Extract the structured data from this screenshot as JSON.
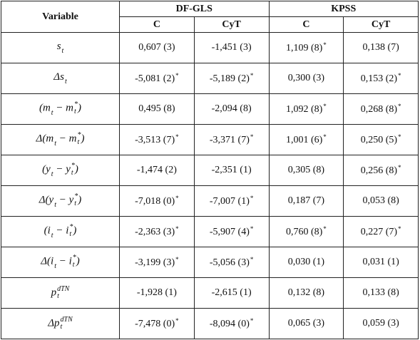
{
  "table": {
    "header": {
      "variable": "Variable",
      "groups": [
        "DF-GLS",
        "KPSS"
      ],
      "columns": [
        "C",
        "CyT",
        "C",
        "CyT"
      ]
    },
    "rows": [
      {
        "variable": [
          {
            "text": "s"
          },
          {
            "sub": "t"
          }
        ],
        "cells": [
          {
            "text": "0,607 (3)"
          },
          {
            "text": "-1,451 (3)"
          },
          {
            "text": "1,109 (8)",
            "sup": "*"
          },
          {
            "text": "0,138 (7)"
          }
        ]
      },
      {
        "variable": [
          {
            "text": "Δs"
          },
          {
            "sub": "t"
          }
        ],
        "cells": [
          {
            "text": "-5,081 (2)",
            "sup": "*"
          },
          {
            "text": "-5,189 (2)",
            "sup": "*"
          },
          {
            "text": "0,300 (3)"
          },
          {
            "text": "0,153 (2)",
            "sup": "*"
          }
        ]
      },
      {
        "variable": [
          {
            "text": "(m"
          },
          {
            "sub": "t"
          },
          {
            "text": " − m"
          },
          {
            "sub": "t",
            "sup": "*"
          },
          {
            "text": ")"
          }
        ],
        "cells": [
          {
            "text": "0,495 (8)"
          },
          {
            "text": "-2,094 (8)"
          },
          {
            "text": "1,092 (8)",
            "sup": "*"
          },
          {
            "text": "0,268 (8)",
            "sup": "*"
          }
        ]
      },
      {
        "variable": [
          {
            "text": "Δ(m"
          },
          {
            "sub": "t"
          },
          {
            "text": " − m"
          },
          {
            "sub": "t",
            "sup": "*"
          },
          {
            "text": ")"
          }
        ],
        "cells": [
          {
            "text": "-3,513 (7)",
            "sup": "*"
          },
          {
            "text": "-3,371 (7)",
            "sup": "*"
          },
          {
            "text": "1,001 (6)",
            "sup": "*"
          },
          {
            "text": "0,250 (5)",
            "sup": "*"
          }
        ]
      },
      {
        "variable": [
          {
            "text": "(y"
          },
          {
            "sub": "t"
          },
          {
            "text": " − y"
          },
          {
            "sub": "t",
            "sup": "*"
          },
          {
            "text": ")"
          }
        ],
        "cells": [
          {
            "text": "-1,474 (2)"
          },
          {
            "text": "-2,351 (1)"
          },
          {
            "text": "0,305 (8)"
          },
          {
            "text": "0,256 (8)",
            "sup": "*"
          }
        ]
      },
      {
        "variable": [
          {
            "text": "Δ(y"
          },
          {
            "sub": "t"
          },
          {
            "text": " − y"
          },
          {
            "sub": "t",
            "sup": "*"
          },
          {
            "text": ")"
          }
        ],
        "cells": [
          {
            "text": "-7,018 (0)",
            "sup": "*"
          },
          {
            "text": "-7,007 (1)",
            "sup": "*"
          },
          {
            "text": "0,187 (7)"
          },
          {
            "text": "0,053 (8)"
          }
        ]
      },
      {
        "variable": [
          {
            "text": "(i"
          },
          {
            "sub": "t"
          },
          {
            "text": " − i"
          },
          {
            "sub": "t",
            "sup": "*"
          },
          {
            "text": ")"
          }
        ],
        "cells": [
          {
            "text": "-2,363 (3)",
            "sup": "*"
          },
          {
            "text": "-5,907 (4)",
            "sup": "*"
          },
          {
            "text": "0,760 (8)",
            "sup": "*"
          },
          {
            "text": "0,227 (7)",
            "sup": "*"
          }
        ]
      },
      {
        "variable": [
          {
            "text": "Δ(i"
          },
          {
            "sub": "t"
          },
          {
            "text": " − i"
          },
          {
            "sub": "t",
            "sup": "*"
          },
          {
            "text": ")"
          }
        ],
        "cells": [
          {
            "text": "-3,199 (3)",
            "sup": "*"
          },
          {
            "text": "-5,056 (3)",
            "sup": "*"
          },
          {
            "text": "0,030 (1)"
          },
          {
            "text": "0,031 (1)"
          }
        ]
      },
      {
        "variable": [
          {
            "text": "p"
          },
          {
            "sub": "t",
            "sup": "dTN"
          }
        ],
        "cells": [
          {
            "text": "-1,928 (1)"
          },
          {
            "text": "-2,615 (1)"
          },
          {
            "text": "0,132 (8)"
          },
          {
            "text": "0,133 (8)"
          }
        ]
      },
      {
        "variable": [
          {
            "text": "Δp"
          },
          {
            "sub": "t",
            "sup": "dTN"
          }
        ],
        "cells": [
          {
            "text": "-7,478 (0)",
            "sup": "*"
          },
          {
            "text": "-8,094 (0)",
            "sup": "*"
          },
          {
            "text": "0,065 (3)"
          },
          {
            "text": "0,059 (3)"
          }
        ]
      }
    ]
  }
}
